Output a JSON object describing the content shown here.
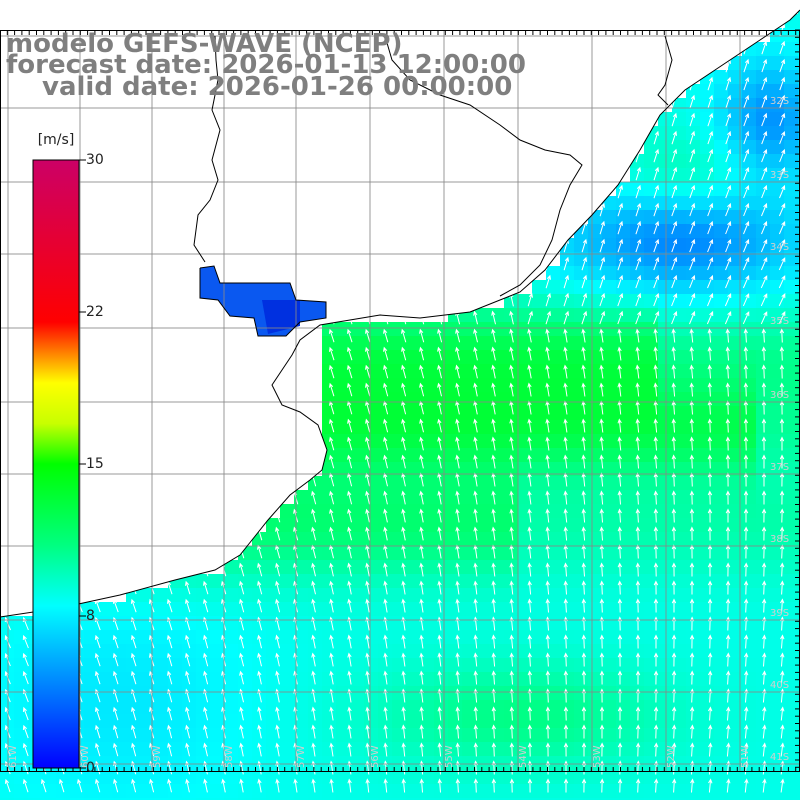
{
  "title": {
    "line1": "modelo GEFS-WAVE (NCEP)",
    "line2": "forecast date: 2026-01-13 12:00:00",
    "line3": "valid date: 2026-01-26 00:00:00"
  },
  "colorbar": {
    "unit": "[m/s]",
    "ticks": [
      "30",
      "22",
      "15",
      "8",
      "0"
    ],
    "tick_values": [
      30,
      22,
      15,
      8,
      0
    ],
    "range": [
      0,
      30
    ],
    "colors": [
      "#0000ff",
      "#00ffff",
      "#00ff00",
      "#ffff00",
      "#ff0000",
      "#cc0066"
    ]
  },
  "map": {
    "right_lat_labels": [
      "32S",
      "33S",
      "34S",
      "35S",
      "36S",
      "37S",
      "38S",
      "39S",
      "40S",
      "41S"
    ],
    "bottom_lon_labels": [
      "61W",
      "60W",
      "59W",
      "58W",
      "57W",
      "56W",
      "55W",
      "54W",
      "53W",
      "52W",
      "51W"
    ],
    "arrow_color": "#ffffff",
    "land_color": "#ffffff",
    "gridline_color": "#888888"
  }
}
